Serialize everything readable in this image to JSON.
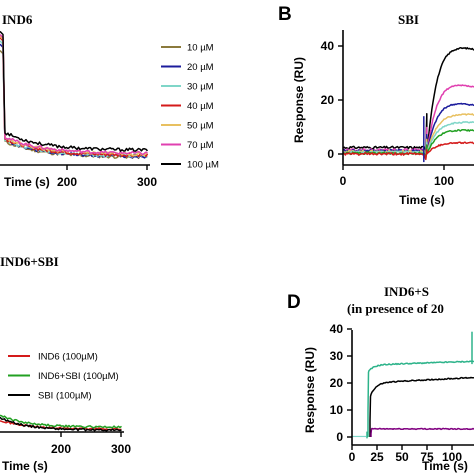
{
  "chart_data": [
    {
      "panel": "A",
      "panel_label": "",
      "type": "line",
      "title": "IND6",
      "xlabel": "Time (s)",
      "ylabel": "",
      "xlim": [
        0,
        300
      ],
      "ylim": [
        -2,
        42
      ],
      "xticks": [
        200,
        300
      ],
      "yticks": [],
      "legend": "right",
      "series": [
        {
          "name": "10 µM",
          "color": "#8b7a3c",
          "inject": 0,
          "peak": 34,
          "end": 0.5,
          "tail": 0.4
        },
        {
          "name": "20 µM",
          "color": "#1c1c9c",
          "inject": 0,
          "peak": 36,
          "end": 0.8,
          "tail": 0.6
        },
        {
          "name": "30 µM",
          "color": "#7fd6c8",
          "inject": 0,
          "peak": 37,
          "end": 1.1,
          "tail": 0.8
        },
        {
          "name": "40 µM",
          "color": "#d41a1a",
          "inject": 0,
          "peak": 38,
          "end": 1.4,
          "tail": 1.0
        },
        {
          "name": "50 µM",
          "color": "#e8c060",
          "inject": 0,
          "peak": 38.5,
          "end": 1.7,
          "tail": 1.3
        },
        {
          "name": "70 µM",
          "color": "#e040b0",
          "inject": 0,
          "peak": 39,
          "end": 2.0,
          "tail": 1.6
        },
        {
          "name": "100 µM",
          "color": "#000000",
          "inject": 0,
          "peak": 40,
          "end": 3.4,
          "tail": 2.6
        }
      ]
    },
    {
      "panel": "B",
      "panel_label": "B",
      "type": "line",
      "title": "SBI",
      "xlabel": "Time (s)",
      "ylabel": "Response (RU)",
      "xlim": [
        0,
        140
      ],
      "ylim": [
        -2,
        48
      ],
      "xticks": [
        0,
        100
      ],
      "yticks": [
        0,
        20,
        40
      ],
      "legend": "none",
      "series": [
        {
          "name": "",
          "color": "#000000",
          "peak": 42.5,
          "end": 38
        },
        {
          "name": "",
          "color": "#e040b0",
          "peak": 28,
          "end": 24
        },
        {
          "name": "",
          "color": "#1c1c9c",
          "peak": 20.5,
          "end": 17.5
        },
        {
          "name": "",
          "color": "#e8c060",
          "peak": 15.5,
          "end": 14.5
        },
        {
          "name": "",
          "color": "#7fd6c8",
          "peak": 12.5,
          "end": 11.5
        },
        {
          "name": "",
          "color": "#22a022",
          "peak": 9.5,
          "end": 8.5
        },
        {
          "name": "",
          "color": "#d41a1a",
          "peak": 4.5,
          "end": 4
        }
      ]
    },
    {
      "panel": "C",
      "panel_label": "",
      "type": "line",
      "title": "IND6+SBI",
      "xlabel": "Time (s)",
      "ylabel": "",
      "xlim": [
        0,
        300
      ],
      "ylim": [
        -2,
        42
      ],
      "xticks": [
        200,
        300
      ],
      "yticks": [],
      "legend": "right",
      "series": [
        {
          "name": "IND6 (100µM)",
          "color": "#d41a1a",
          "start": 5,
          "end": 1.2
        },
        {
          "name": "IND6+SBI (100µM)",
          "color": "#22a022",
          "start": 7,
          "end": 2.0
        },
        {
          "name": "SBI (100µM)",
          "color": "#000000",
          "start": 6,
          "end": 0.7
        }
      ]
    },
    {
      "panel": "D",
      "panel_label": "D",
      "type": "line",
      "title": "IND6+S",
      "subtitle": "(in presence of 20",
      "xlabel": "Time (s)",
      "ylabel": "Response (RU)",
      "xlim": [
        0,
        120
      ],
      "ylim": [
        -1,
        42
      ],
      "xticks": [
        0,
        50,
        100
      ],
      "extra_tick_labels": [
        "25",
        "75"
      ],
      "yticks": [
        0,
        10,
        20,
        30,
        40
      ],
      "legend": "none",
      "series": [
        {
          "name": "",
          "color": "#2db38a",
          "inject": 16,
          "rise": 24,
          "level": 27,
          "end": 28
        },
        {
          "name": "",
          "color": "#000000",
          "inject": 18,
          "rise": 15,
          "level": 20.5,
          "end": 22
        },
        {
          "name": "",
          "color": "#800080",
          "inject": 19,
          "rise": 3,
          "level": 3,
          "end": 3
        }
      ]
    }
  ]
}
